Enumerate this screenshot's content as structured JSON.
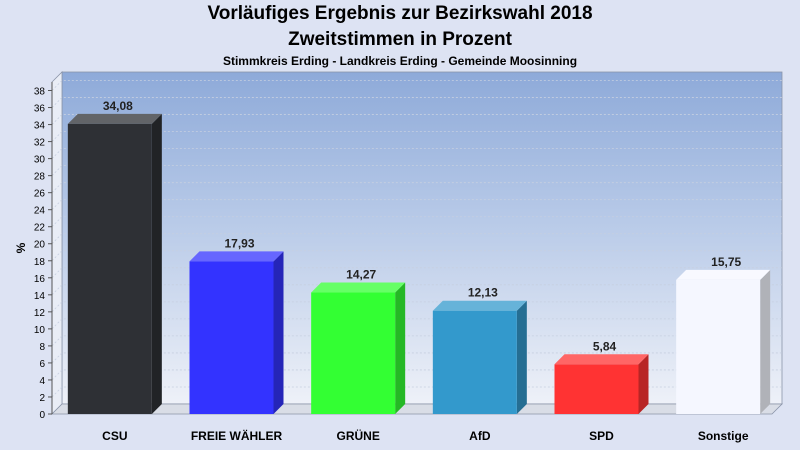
{
  "chart_data": {
    "type": "bar",
    "title": "Vorläufiges Ergebnis zur Bezirkswahl 2018",
    "subtitle": "Zweitstimmen in Prozent",
    "caption": "Stimmkreis Erding - Landkreis Erding - Gemeinde Moosinning",
    "ylabel": "%",
    "xlabel": "",
    "ylim": [
      0,
      39
    ],
    "yticks": [
      0,
      2,
      4,
      6,
      8,
      10,
      12,
      14,
      16,
      18,
      20,
      22,
      24,
      26,
      28,
      30,
      32,
      34,
      36,
      38
    ],
    "grid": true,
    "categories": [
      "CSU",
      "FREIE WÄHLER",
      "GRÜNE",
      "AfD",
      "SPD",
      "Sonstige"
    ],
    "values": [
      34.08,
      17.93,
      14.27,
      12.13,
      5.84,
      15.75
    ],
    "value_labels": [
      "34,08",
      "17,93",
      "14,27",
      "12,13",
      "5,84",
      "15,75"
    ],
    "colors": [
      "#2e3035",
      "#3333ff",
      "#33ff33",
      "#3399cc",
      "#ff3333",
      "#f5f7ff"
    ]
  }
}
